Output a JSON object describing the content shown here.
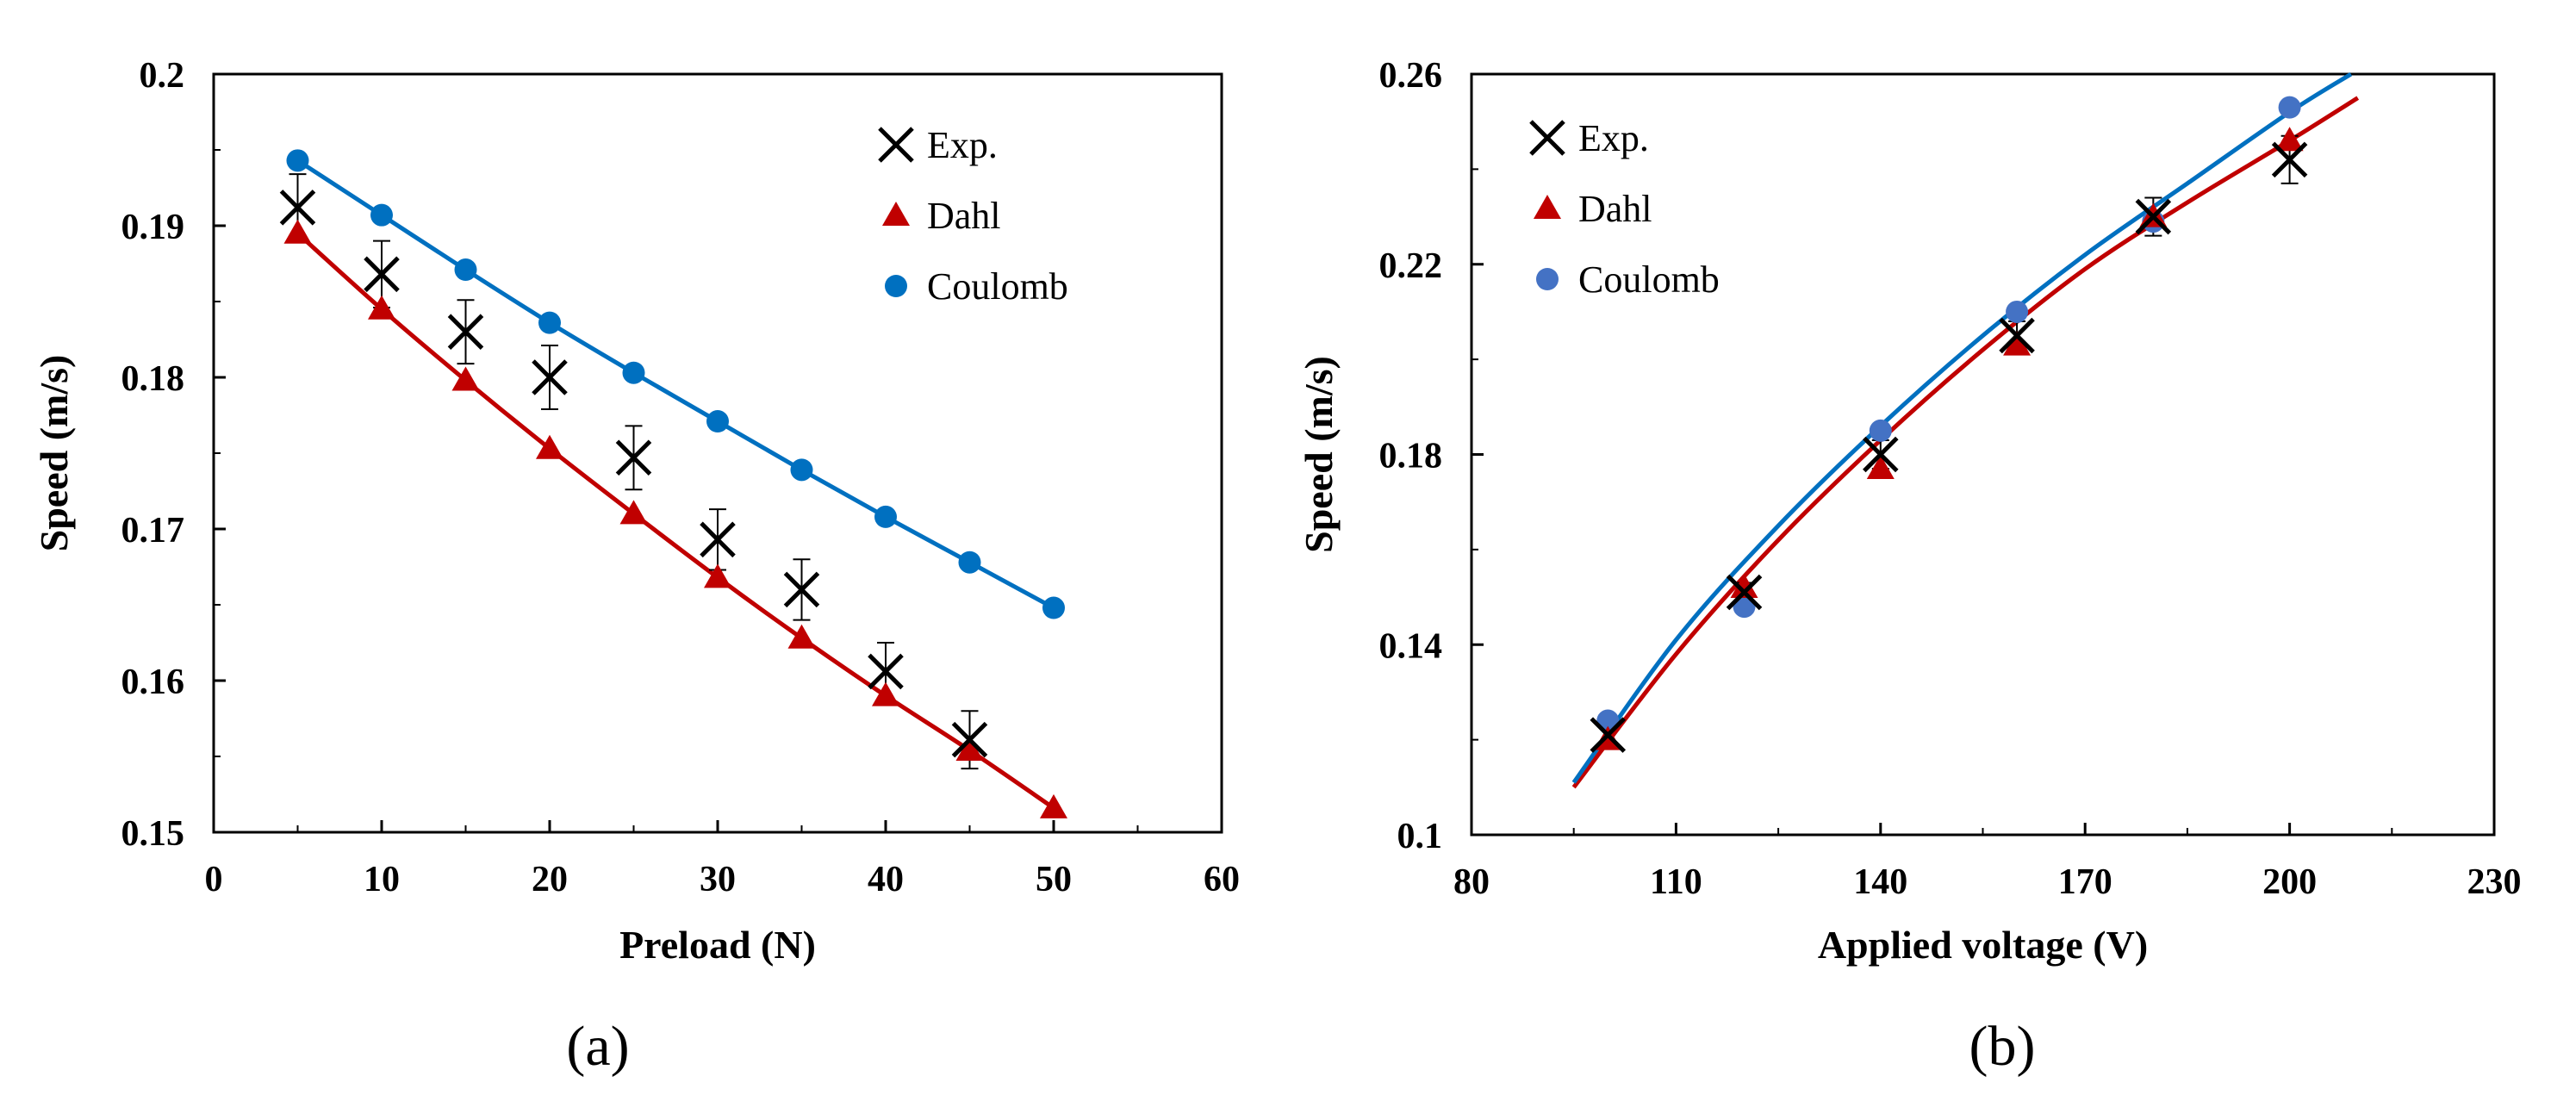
{
  "chart_data": [
    {
      "type": "scatter",
      "panel_label": "(a)",
      "xlabel": "Preload (N)",
      "ylabel": "Speed (m/s)",
      "xlim": [
        0,
        60
      ],
      "ylim": [
        0.15,
        0.2
      ],
      "x_ticks": [
        0,
        10,
        20,
        30,
        40,
        50,
        60
      ],
      "x_tick_labels": [
        "0",
        "10",
        "20",
        "30",
        "40",
        "50",
        "60"
      ],
      "y_ticks": [
        0.15,
        0.16,
        0.17,
        0.18,
        0.19,
        0.2
      ],
      "y_tick_labels": [
        "0.15",
        "0.16",
        "0.17",
        "0.18",
        "0.19",
        "0.2"
      ],
      "legend_position": "top-right",
      "series": [
        {
          "name": "Exp.",
          "marker": "x",
          "color": "#000000",
          "x": [
            5,
            10,
            15,
            20,
            25,
            30,
            35,
            40,
            45
          ],
          "y": [
            0.1912,
            0.1868,
            0.183,
            0.18,
            0.1747,
            0.1693,
            0.166,
            0.1606,
            0.1561
          ],
          "error": [
            0.0022,
            0.0022,
            0.0021,
            0.0021,
            0.0021,
            0.002,
            0.002,
            0.0019,
            0.0019
          ]
        },
        {
          "name": "Dahl",
          "marker": "triangle",
          "color": "#c00000",
          "x": [
            5,
            10,
            15,
            20,
            25,
            30,
            35,
            40,
            45,
            50
          ],
          "y": [
            0.1895,
            0.1845,
            0.1798,
            0.1753,
            0.171,
            0.1668,
            0.1628,
            0.159,
            0.1554,
            0.1516
          ],
          "fit_line": true
        },
        {
          "name": "Coulomb",
          "marker": "circle",
          "color": "#0070c0",
          "x": [
            5,
            10,
            15,
            20,
            25,
            30,
            35,
            40,
            45,
            50
          ],
          "y": [
            0.1943,
            0.1907,
            0.1871,
            0.1836,
            0.1803,
            0.1771,
            0.1739,
            0.1708,
            0.1678,
            0.1648
          ],
          "fit_line": true
        }
      ]
    },
    {
      "type": "scatter",
      "panel_label": "(b)",
      "xlabel": "Applied voltage (V)",
      "ylabel": "Speed (m/s)",
      "xlim": [
        80,
        230
      ],
      "ylim": [
        0.1,
        0.26
      ],
      "x_ticks": [
        80,
        110,
        140,
        170,
        200,
        230
      ],
      "x_tick_labels": [
        "80",
        "110",
        "140",
        "170",
        "200",
        "230"
      ],
      "y_ticks": [
        0.1,
        0.14,
        0.18,
        0.22,
        0.26
      ],
      "y_tick_labels": [
        "0.1",
        "0.14",
        "0.18",
        "0.22",
        "0.26"
      ],
      "legend_position": "top-left",
      "series": [
        {
          "name": "Exp.",
          "marker": "x",
          "color": "#000000",
          "x": [
            100,
            120,
            140,
            160,
            180,
            200
          ],
          "y": [
            0.121,
            0.151,
            0.18,
            0.205,
            0.23,
            0.242
          ],
          "error": [
            0.002,
            0.002,
            0.003,
            0.003,
            0.004,
            0.005
          ]
        },
        {
          "name": "Dahl",
          "marker": "triangle",
          "color": "#c00000",
          "x": [
            100,
            120,
            140,
            160,
            180,
            200
          ],
          "y": [
            0.12,
            0.152,
            0.177,
            0.203,
            0.23,
            0.246
          ],
          "fit_curve": {
            "x": [
              95,
              110,
              125,
              140,
              155,
              170,
              185,
              200,
              210
            ],
            "y": [
              0.11,
              0.138,
              0.162,
              0.183,
              0.202,
              0.219,
              0.233,
              0.246,
              0.255
            ]
          }
        },
        {
          "name": "Coulomb",
          "marker": "circle",
          "color": "#4472c4",
          "x": [
            100,
            120,
            140,
            160,
            180,
            200
          ],
          "y": [
            0.124,
            0.148,
            0.185,
            0.21,
            0.229,
            0.253
          ],
          "fit_curve": {
            "x": [
              95,
              110,
              125,
              140,
              155,
              170,
              185,
              200,
              209
            ],
            "y": [
              0.111,
              0.141,
              0.165,
              0.186,
              0.205,
              0.222,
              0.237,
              0.252,
              0.26
            ]
          },
          "line_color": "#0070c0"
        }
      ]
    }
  ]
}
